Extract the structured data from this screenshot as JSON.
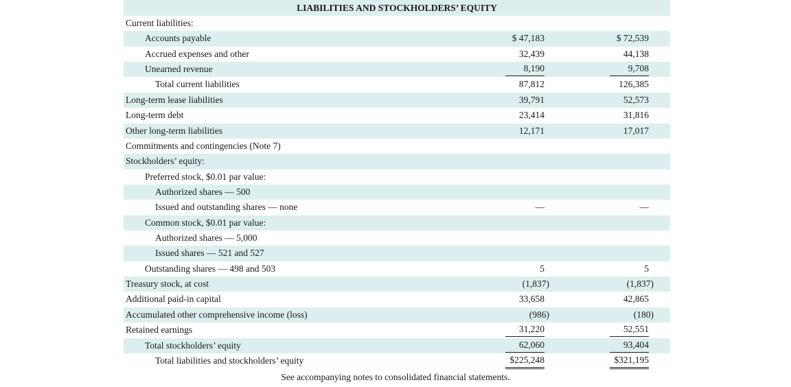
{
  "table": {
    "title": "LIABILITIES AND STOCKHOLDERS’ EQUITY",
    "rows": [
      [
        "Current liabilities:",
        "",
        "",
        0,
        ""
      ],
      [
        "Accounts payable",
        "$ 47,183",
        "$ 72,539",
        1,
        ""
      ],
      [
        "Accrued expenses and other",
        "32,439",
        "44,138",
        1,
        ""
      ],
      [
        "Unearned revenue",
        "8,190",
        "9,708",
        1,
        "single"
      ],
      [
        "Total current liabilities",
        "87,812",
        "126,385",
        2,
        ""
      ],
      [
        "Long-term lease liabilities",
        "39,791",
        "52,573",
        0,
        ""
      ],
      [
        "Long-term debt",
        "23,414",
        "31,816",
        0,
        ""
      ],
      [
        "Other long-term liabilities",
        "12,171",
        "17,017",
        0,
        ""
      ],
      [
        "Commitments and contingencies (Note 7)",
        "",
        "",
        0,
        ""
      ],
      [
        "Stockholders’ equity:",
        "",
        "",
        0,
        ""
      ],
      [
        "Preferred stock, $0.01 par value:",
        "",
        "",
        1,
        ""
      ],
      [
        "Authorized shares — 500",
        "",
        "",
        2,
        ""
      ],
      [
        "Issued and outstanding shares — none",
        "—",
        "—",
        2,
        ""
      ],
      [
        "Common stock, $0.01 par value:",
        "",
        "",
        1,
        ""
      ],
      [
        "Authorized shares — 5,000",
        "",
        "",
        2,
        ""
      ],
      [
        "Issued shares — 521 and 527",
        "",
        "",
        2,
        ""
      ],
      [
        "Outstanding shares — 498 and 503",
        "5",
        "5",
        1,
        ""
      ],
      [
        "Treasury stock, at cost",
        "(1,837)",
        "(1,837)",
        0,
        ""
      ],
      [
        "Additional paid-in capital",
        "33,658",
        "42,865",
        0,
        ""
      ],
      [
        "Accumulated other comprehensive income (loss)",
        "(986)",
        "(180)",
        0,
        ""
      ],
      [
        "Retained earnings",
        "31,220",
        "52,551",
        0,
        "single"
      ],
      [
        "Total stockholders’ equity",
        "62,060",
        "93,404",
        1,
        "single"
      ],
      [
        "Total liabilities and stockholders’ equity",
        "$225,248",
        "$321,195",
        2,
        "double"
      ]
    ],
    "footnote": "See accompanying notes to consolidated financial statements."
  }
}
